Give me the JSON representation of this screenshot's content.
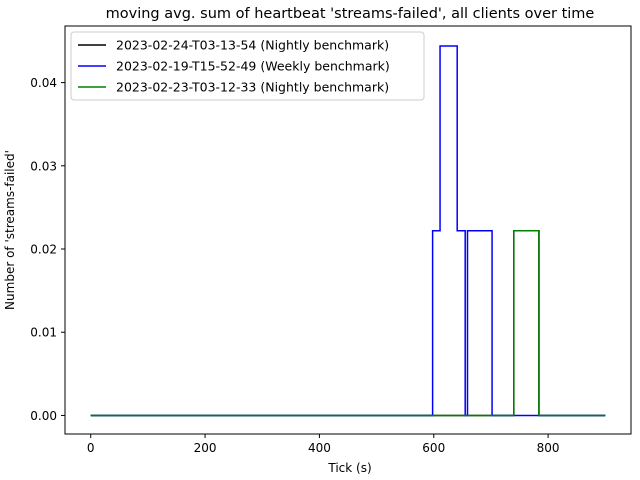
{
  "chart_data": {
    "type": "line",
    "title": "moving avg. sum of heartbeat 'streams-failed', all clients over time",
    "xlabel": "Tick (s)",
    "ylabel": "Number of 'streams-failed'",
    "xlim": [
      -45,
      945
    ],
    "ylim": [
      -0.00223,
      0.0468
    ],
    "xticks": [
      0,
      200,
      400,
      600,
      800
    ],
    "yticks": [
      0.0,
      0.01,
      0.02,
      0.03,
      0.04
    ],
    "xtick_labels": [
      "0",
      "200",
      "400",
      "600",
      "800"
    ],
    "ytick_labels": [
      "0.00",
      "0.01",
      "0.02",
      "0.03",
      "0.04"
    ],
    "grid": false,
    "legend_position": "upper-left",
    "series": [
      {
        "name": "2023-02-24-T03-13-54 (Nightly benchmark)",
        "color": "#000000",
        "step": true,
        "points": [
          [
            0,
            0
          ],
          [
            740,
            0
          ],
          [
            740,
            0.0222
          ],
          [
            784,
            0.0222
          ],
          [
            784,
            0
          ],
          [
            900,
            0
          ]
        ]
      },
      {
        "name": "2023-02-19-T15-52-49 (Weekly benchmark)",
        "color": "#0000ff",
        "step": true,
        "points": [
          [
            0,
            0
          ],
          [
            598,
            0
          ],
          [
            598,
            0.0222
          ],
          [
            611,
            0.0222
          ],
          [
            611,
            0.0444
          ],
          [
            641,
            0.0444
          ],
          [
            641,
            0.0222
          ],
          [
            655,
            0.0222
          ],
          [
            655,
            0
          ],
          [
            659,
            0
          ],
          [
            659,
            0.0222
          ],
          [
            702,
            0.0222
          ],
          [
            702,
            0
          ],
          [
            900,
            0
          ]
        ]
      },
      {
        "name": "2023-02-23-T03-12-33 (Nightly benchmark)",
        "color": "#008000",
        "step": true,
        "points": [
          [
            0,
            0
          ],
          [
            740,
            0
          ],
          [
            740,
            0.0222
          ],
          [
            784,
            0.0222
          ],
          [
            784,
            0
          ],
          [
            900,
            0
          ]
        ]
      }
    ]
  }
}
